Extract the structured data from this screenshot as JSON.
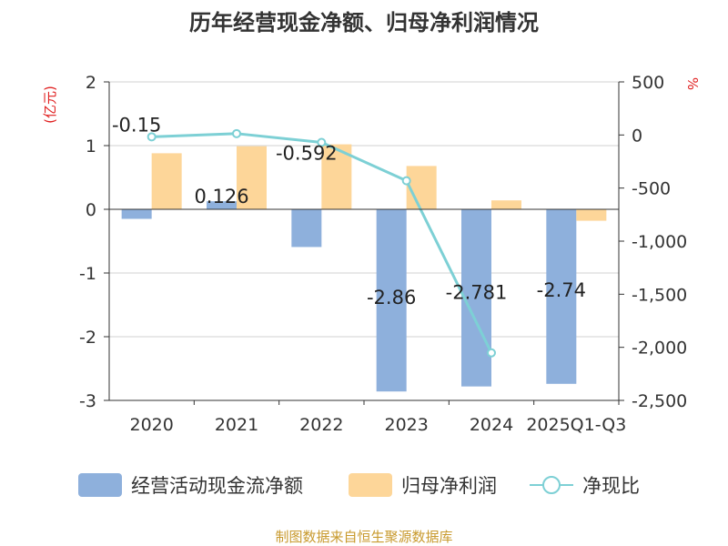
{
  "chart_data": {
    "type": "bar",
    "title": "历年经营现金净额、归母净利润情况",
    "categories": [
      "2020",
      "2021",
      "2022",
      "2023",
      "2024",
      "2025Q1-Q3"
    ],
    "series": [
      {
        "name": "经营活动现金流净额",
        "kind": "bar",
        "axis": "left",
        "color": "#8eb0dc",
        "values": [
          -0.15,
          0.126,
          -0.592,
          -2.86,
          -2.781,
          -2.74
        ],
        "labels": [
          "-0.15",
          "0.126",
          "-0.592",
          "-2.86",
          "-2.781",
          "-2.74"
        ]
      },
      {
        "name": "归母净利润",
        "kind": "bar",
        "axis": "left",
        "color": "#fdd699",
        "values": [
          0.88,
          0.99,
          1.02,
          0.68,
          0.14,
          -0.18
        ]
      },
      {
        "name": "净现比",
        "kind": "line",
        "axis": "right",
        "color": "#7dd0d5",
        "values": [
          -17,
          13,
          -70,
          -431,
          -2052,
          null
        ]
      }
    ],
    "left_axis": {
      "label": "(亿元)",
      "min": -3,
      "max": 2,
      "ticks": [
        2,
        1,
        0,
        -1,
        -2,
        -3
      ],
      "tick_labels": [
        "2",
        "1",
        "0",
        "-1",
        "-2",
        "-3"
      ]
    },
    "right_axis": {
      "label": "%",
      "min": -2500,
      "max": 500,
      "ticks": [
        500,
        0,
        -500,
        -1000,
        -1500,
        -2000,
        -2500
      ],
      "tick_labels": [
        "500",
        "0",
        "-500",
        "-1,000",
        "-1,500",
        "-2,000",
        "-2,500"
      ]
    },
    "grid": true,
    "legend_position": "bottom",
    "source": "制图数据来自恒生聚源数据库",
    "axis_label_color": "#e02020",
    "source_color": "#c89a2e"
  }
}
